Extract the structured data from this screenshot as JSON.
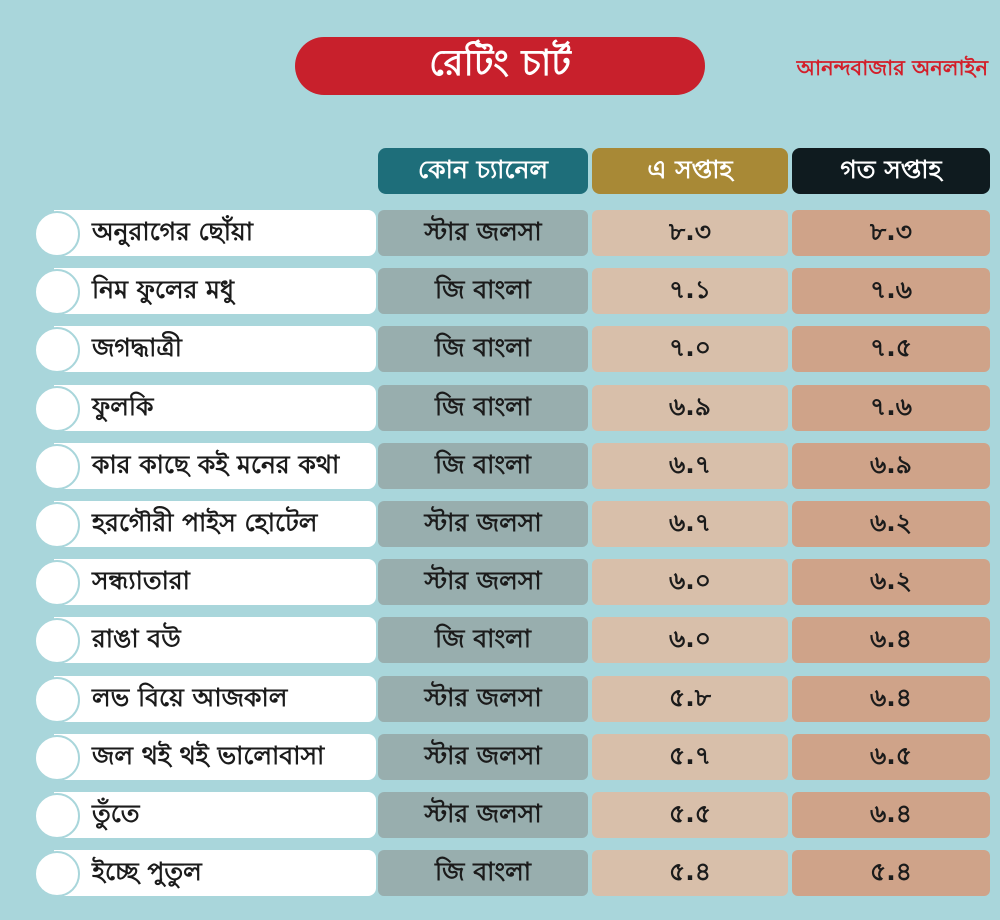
{
  "title": "রেটিং চার্ট",
  "brand": "আনন্দবাজার অনলাইন",
  "colors": {
    "background": "#a9d6db",
    "title_pill": "#c8202c",
    "brand_text": "#d31f2a",
    "header_channel": "#1e6e7a",
    "header_this_week": "#a88936",
    "header_last_week": "#0f1b1f",
    "cell_channel": "#98aeae",
    "cell_this_week": "#d8bfaa",
    "cell_last_week": "#cfa389"
  },
  "chart_data": {
    "type": "table",
    "title": "রেটিং চার্ট",
    "columns": [
      "কোন চ্যানেল",
      "এ সপ্তাহ",
      "গত সপ্তাহ"
    ],
    "rows": [
      {
        "show": "অনুরাগের ছোঁয়া",
        "channel": "স্টার জলসা",
        "this_week": "৮.৩",
        "last_week": "৮.৩"
      },
      {
        "show": "নিম ফুলের মধু",
        "channel": "জি বাংলা",
        "this_week": "৭.১",
        "last_week": "৭.৬"
      },
      {
        "show": "জগদ্ধাত্রী",
        "channel": "জি বাংলা",
        "this_week": "৭.০",
        "last_week": "৭.৫"
      },
      {
        "show": "ফুলকি",
        "channel": "জি বাংলা",
        "this_week": "৬.৯",
        "last_week": "৭.৬"
      },
      {
        "show": "কার কাছে কই মনের কথা",
        "channel": "জি বাংলা",
        "this_week": "৬.৭",
        "last_week": "৬.৯"
      },
      {
        "show": "হরগৌরী পাইস হোটেল",
        "channel": "স্টার জলসা",
        "this_week": "৬.৭",
        "last_week": "৬.২"
      },
      {
        "show": "সন্ধ্যাতারা",
        "channel": "স্টার জলসা",
        "this_week": "৬.০",
        "last_week": "৬.২"
      },
      {
        "show": "রাঙা বউ",
        "channel": "জি বাংলা",
        "this_week": "৬.০",
        "last_week": "৬.৪"
      },
      {
        "show": "লভ বিয়ে আজকাল",
        "channel": "স্টার জলসা",
        "this_week": "৫.৮",
        "last_week": "৬.৪"
      },
      {
        "show": "জল থই থই ভালোবাসা",
        "channel": "স্টার জলসা",
        "this_week": "৫.৭",
        "last_week": "৬.৫"
      },
      {
        "show": "তুঁতে",
        "channel": "স্টার জলসা",
        "this_week": "৫.৫",
        "last_week": "৬.৪"
      },
      {
        "show": "ইচ্ছে পুতুল",
        "channel": "জি বাংলা",
        "this_week": "৫.৪",
        "last_week": "৫.৪"
      }
    ]
  }
}
